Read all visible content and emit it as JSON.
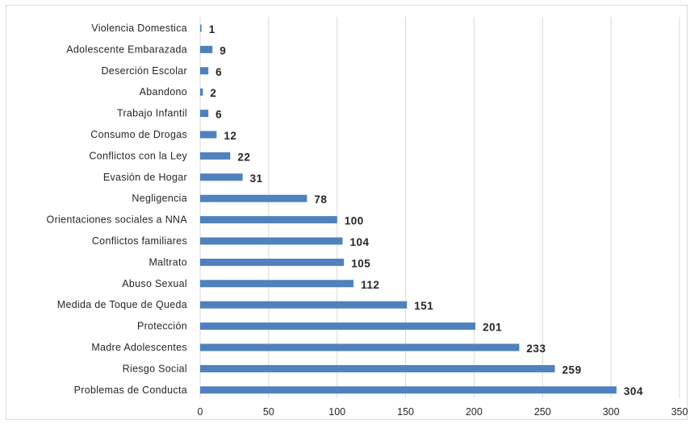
{
  "chart_data": {
    "type": "bar",
    "orientation": "horizontal",
    "categories": [
      "Violencia Domestica",
      "Adolescente Embarazada",
      "Deserción Escolar",
      "Abandono",
      "Trabajo Infantil",
      "Consumo de Drogas",
      "Conflictos con la Ley",
      "Evasión de Hogar",
      "Negligencia",
      "Orientaciones   sociales a NNA",
      "Conflictos familiares",
      "Maltrato",
      "Abuso Sexual",
      "Medida de Toque de Queda",
      "Protección",
      "Madre Adolescentes",
      "Riesgo Social",
      "Problemas de  Conducta"
    ],
    "values": [
      1,
      9,
      6,
      2,
      6,
      12,
      22,
      31,
      78,
      100,
      104,
      105,
      112,
      151,
      201,
      233,
      259,
      304
    ],
    "data_labels": [
      "1",
      "9",
      "6",
      "2",
      "6",
      "12",
      "22",
      "31",
      "78",
      "100",
      "104",
      "105",
      "112",
      "151",
      "201",
      "233",
      "259",
      "304"
    ],
    "xlim": [
      0,
      350
    ],
    "x_ticks": [
      0,
      50,
      100,
      150,
      200,
      250,
      300,
      350
    ],
    "x_tick_labels": [
      "0",
      "50",
      "100",
      "150",
      "200",
      "250",
      "300",
      "350"
    ],
    "grid": "vertical",
    "legend": "none",
    "title": "",
    "xlabel": "",
    "ylabel": ""
  },
  "colors": {
    "bar": "#4f81bd",
    "grid": "#d9d9d9",
    "text": "#262626"
  }
}
